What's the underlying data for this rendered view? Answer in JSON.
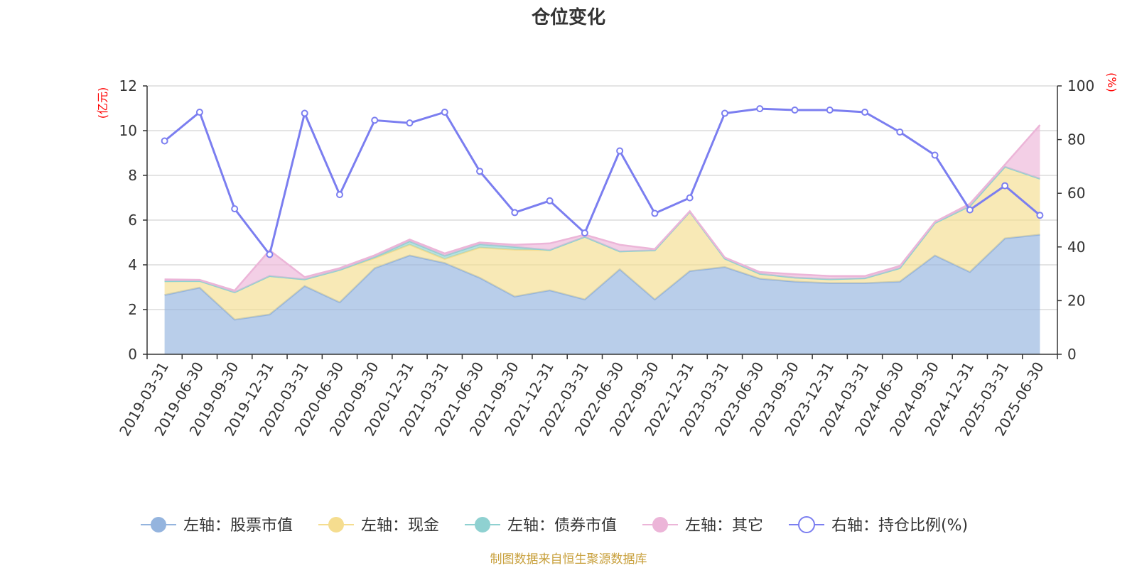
{
  "chart_data": {
    "type": "area",
    "title": "仓位变化",
    "left_unit": "(亿元)",
    "right_unit": "(%)",
    "left_ylim": [
      0,
      12
    ],
    "left_ticks": [
      "0",
      "2",
      "4",
      "6",
      "8",
      "10",
      "12"
    ],
    "right_ylim": [
      0,
      100
    ],
    "right_ticks": [
      "0",
      "20",
      "40",
      "60",
      "80",
      "100"
    ],
    "grid": true,
    "legend_position": "bottom",
    "categories": [
      "2019-03-31",
      "2019-06-30",
      "2019-09-30",
      "2019-12-31",
      "2020-03-31",
      "2020-06-30",
      "2020-09-30",
      "2020-12-31",
      "2021-03-31",
      "2021-06-30",
      "2021-09-30",
      "2021-12-31",
      "2022-03-31",
      "2022-06-30",
      "2022-09-30",
      "2022-12-31",
      "2023-03-31",
      "2023-06-30",
      "2023-09-30",
      "2023-12-31",
      "2024-03-31",
      "2024-06-30",
      "2024-09-30",
      "2024-12-31",
      "2025-03-31",
      "2025-06-30"
    ],
    "series": [
      {
        "name": "左轴：股票市值",
        "axis": "left",
        "type": "area",
        "color": "#94b4de",
        "values": [
          2.65,
          2.98,
          1.55,
          1.78,
          3.05,
          2.32,
          3.85,
          4.42,
          4.08,
          3.42,
          2.58,
          2.86,
          2.45,
          3.8,
          2.45,
          3.72,
          3.9,
          3.38,
          3.25,
          3.18,
          3.18,
          3.25,
          4.42,
          3.68,
          5.18,
          5.35
        ]
      },
      {
        "name": "左轴：现金",
        "axis": "left",
        "type": "area",
        "color": "#f5dd8f",
        "values": [
          0.62,
          0.3,
          1.22,
          1.72,
          0.3,
          1.45,
          0.45,
          0.48,
          0.18,
          1.35,
          2.1,
          1.8,
          2.8,
          0.8,
          2.2,
          2.65,
          0.38,
          0.22,
          0.18,
          0.18,
          0.22,
          0.6,
          1.45,
          2.95,
          3.2,
          2.5
        ]
      },
      {
        "name": "左轴：债券市值",
        "axis": "left",
        "type": "area",
        "color": "#8fd1d1",
        "values": [
          0,
          0,
          0,
          0,
          0,
          0,
          0.05,
          0.15,
          0.15,
          0.15,
          0.12,
          0,
          0,
          0,
          0,
          0,
          0,
          0,
          0,
          0,
          0,
          0,
          0,
          0,
          0,
          0
        ]
      },
      {
        "name": "左轴：其它",
        "axis": "left",
        "type": "area",
        "color": "#ecb5d8",
        "values": [
          0.08,
          0.05,
          0.08,
          1.15,
          0.1,
          0.08,
          0.08,
          0.08,
          0.1,
          0.08,
          0.1,
          0.3,
          0.1,
          0.3,
          0.05,
          0.03,
          0.05,
          0.08,
          0.15,
          0.14,
          0.1,
          0.1,
          0.05,
          0.1,
          0.1,
          2.4
        ]
      },
      {
        "name": "右轴：持仓比例(%)",
        "axis": "right",
        "type": "line",
        "color": "#7b7ef0",
        "values": [
          79.5,
          90.2,
          54.2,
          37.2,
          89.8,
          59.5,
          87.2,
          86.2,
          90.2,
          68.2,
          52.8,
          57.2,
          45.2,
          75.8,
          52.5,
          58.3,
          89.8,
          91.5,
          91.0,
          91.0,
          90.2,
          82.8,
          74.2,
          53.8,
          62.8,
          51.8
        ]
      }
    ]
  },
  "footer": "制图数据来自恒生聚源数据库"
}
